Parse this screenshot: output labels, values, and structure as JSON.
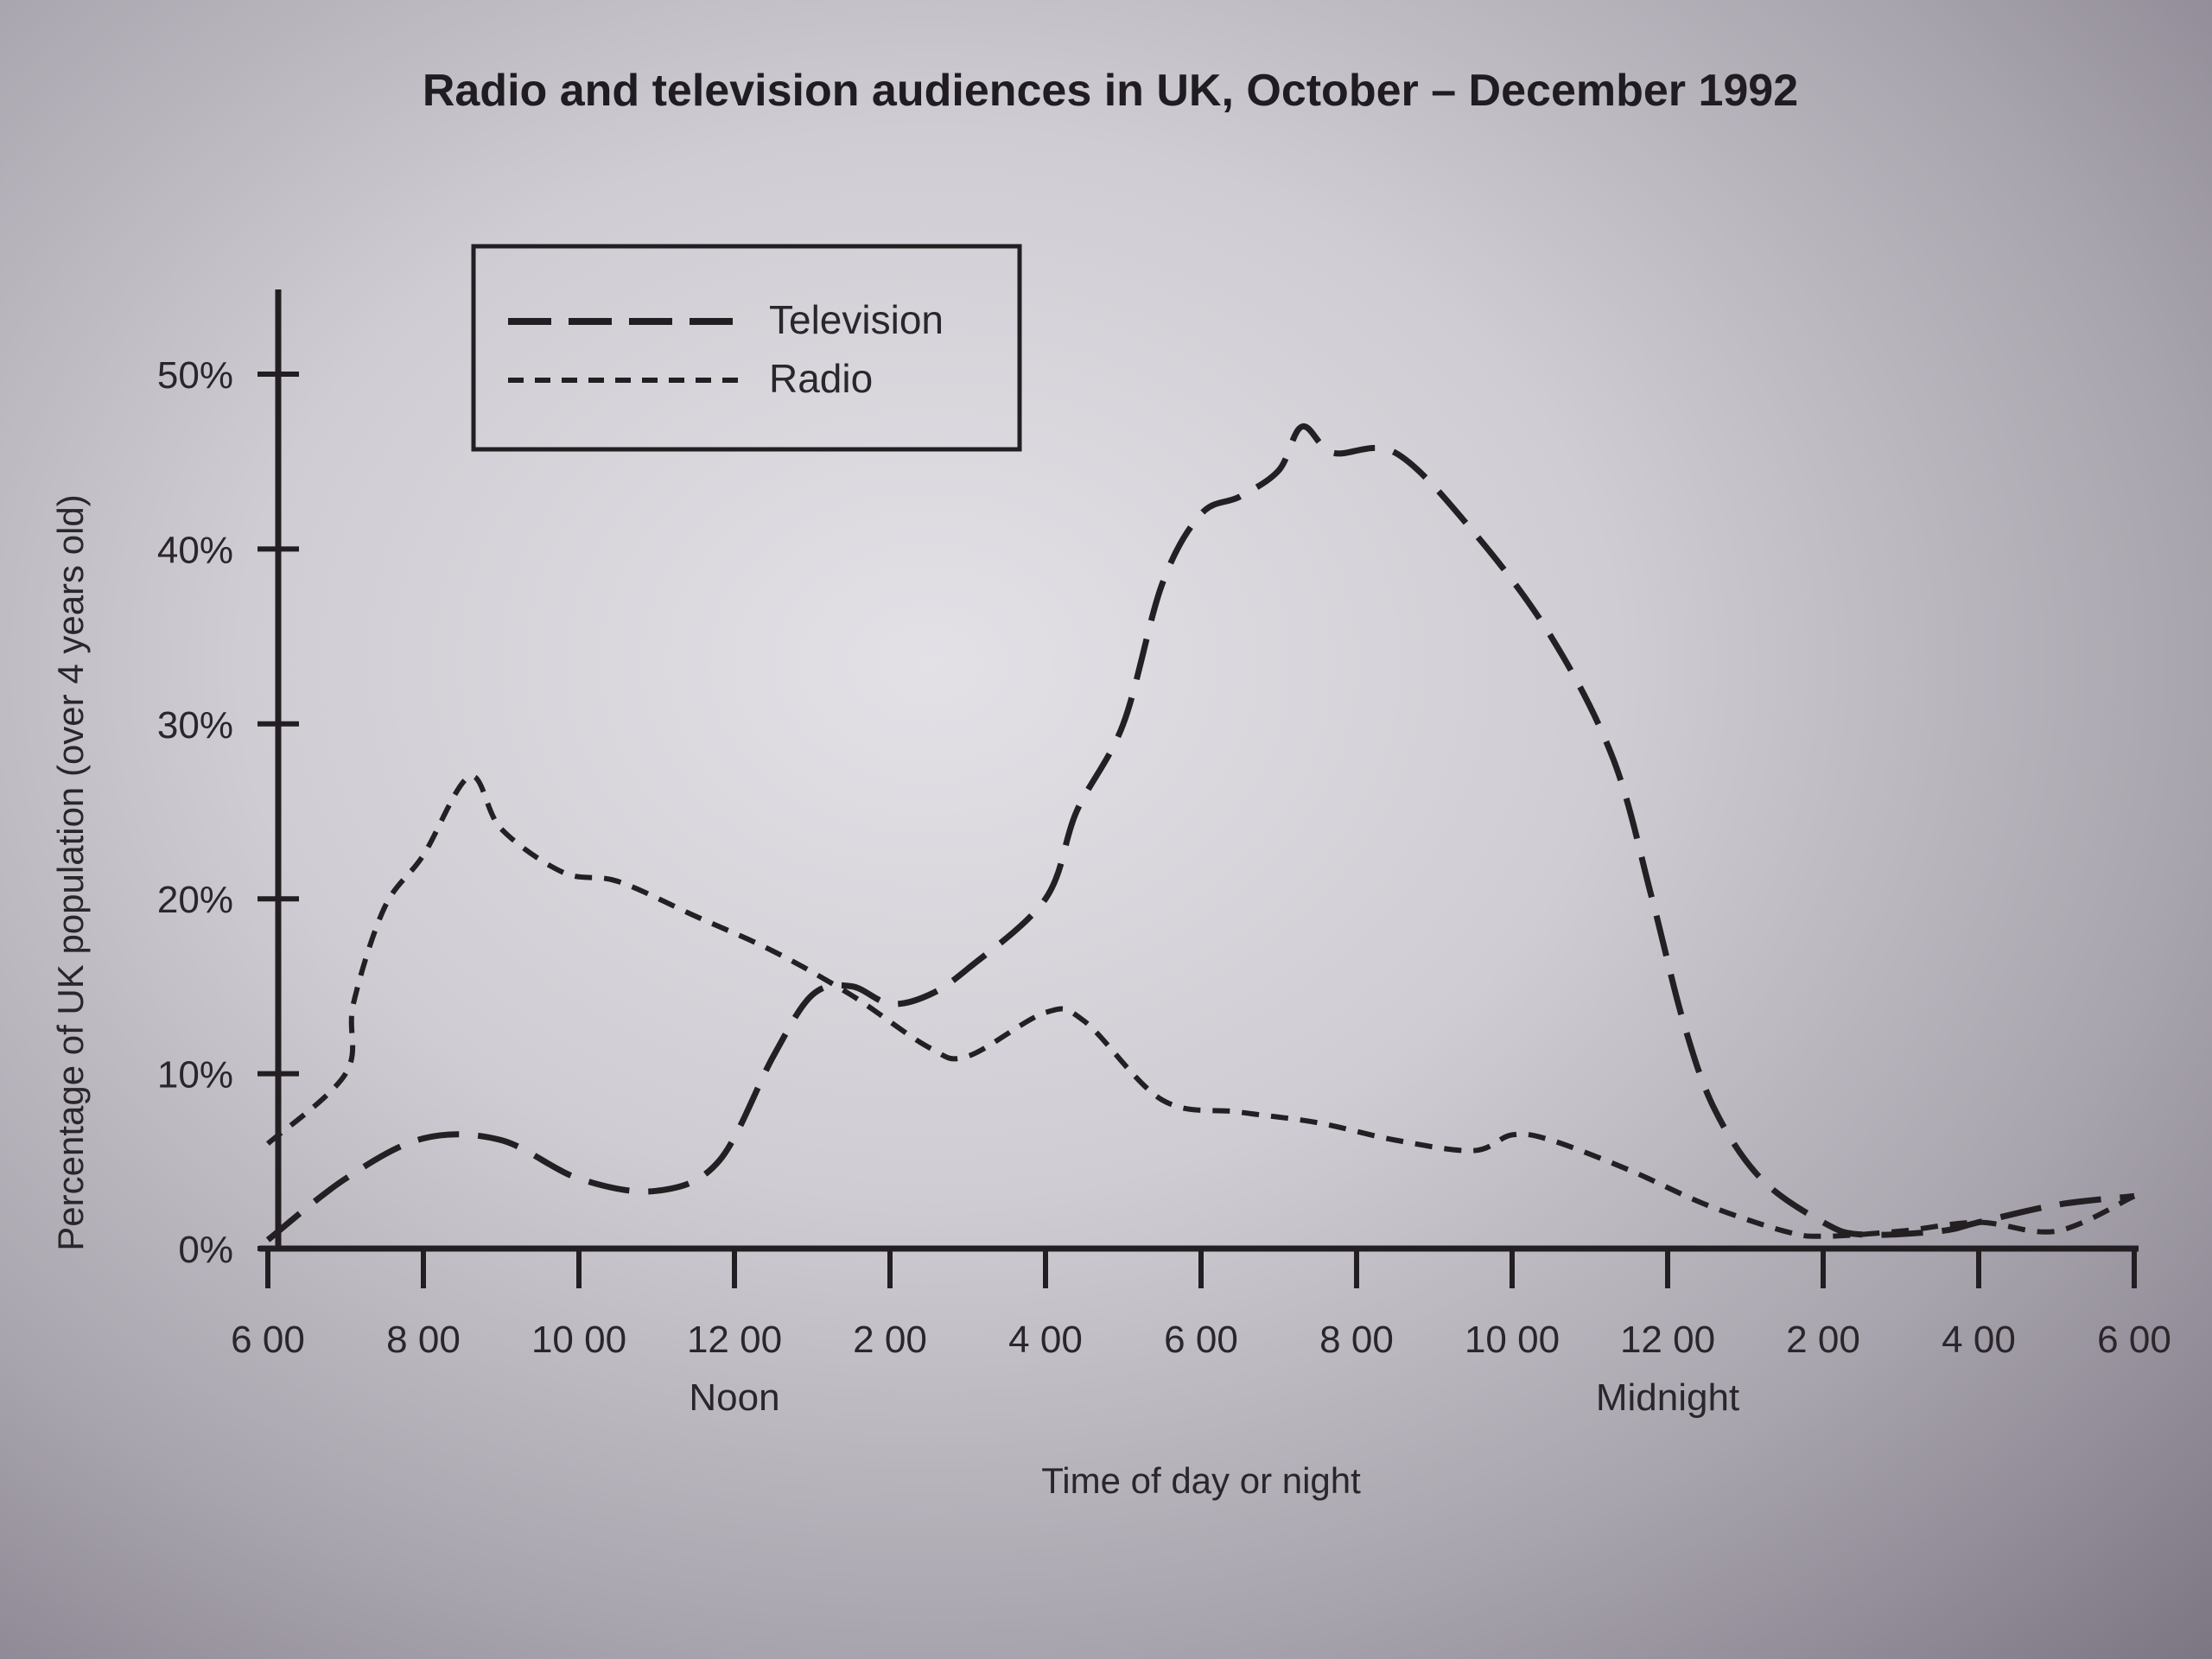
{
  "chart_data": {
    "type": "line",
    "title": "Radio and television audiences in UK, October – December 1992",
    "ylabel": "Percentage of UK population (over 4 years old)",
    "xlabel": "Time of day or night",
    "x_ticks": [
      "6 00",
      "8 00",
      "10 00",
      "12 00",
      "2 00",
      "4 00",
      "6 00",
      "8 00",
      "10 00",
      "12 00",
      "2 00",
      "4 00",
      "6 00"
    ],
    "x_tick_sublabels": [
      {
        "tick": "12 00",
        "index": 3,
        "text": "Noon"
      },
      {
        "tick": "12 00",
        "index": 9,
        "text": "Midnight"
      }
    ],
    "y_ticks": [
      "0%",
      "10%",
      "20%",
      "30%",
      "40%",
      "50%"
    ],
    "ylim": [
      0,
      55
    ],
    "x_unit": "hours after 6 00",
    "xlim": [
      0,
      24
    ],
    "legend": "top-left",
    "series": [
      {
        "name": "Television",
        "style": "long-dash",
        "color": "#231f22",
        "points": [
          [
            0,
            0.5
          ],
          [
            1,
            4
          ],
          [
            2,
            6.3
          ],
          [
            3,
            6.2
          ],
          [
            4,
            4
          ],
          [
            5,
            3.3
          ],
          [
            5.8,
            5
          ],
          [
            6.5,
            11
          ],
          [
            7,
            14.5
          ],
          [
            7.5,
            15
          ],
          [
            8,
            14
          ],
          [
            8.5,
            14.5
          ],
          [
            9,
            16
          ],
          [
            10,
            20
          ],
          [
            10.4,
            25
          ],
          [
            11,
            30
          ],
          [
            11.5,
            38
          ],
          [
            12,
            42
          ],
          [
            12.5,
            43
          ],
          [
            13,
            44.5
          ],
          [
            13.3,
            47
          ],
          [
            13.7,
            45.5
          ],
          [
            14.5,
            45.5
          ],
          [
            15.5,
            41
          ],
          [
            16.5,
            35
          ],
          [
            17.3,
            28
          ],
          [
            17.8,
            20
          ],
          [
            18.2,
            13
          ],
          [
            18.6,
            8
          ],
          [
            19.2,
            4
          ],
          [
            20,
            1.5
          ],
          [
            20.5,
            0.8
          ],
          [
            21.5,
            1
          ],
          [
            22,
            1.5
          ],
          [
            23,
            2.5
          ],
          [
            24,
            3
          ]
        ]
      },
      {
        "name": "Radio",
        "style": "short-dash",
        "color": "#231f22",
        "points": [
          [
            0,
            6
          ],
          [
            1,
            10
          ],
          [
            1.1,
            14
          ],
          [
            1.5,
            19.5
          ],
          [
            2,
            22.5
          ],
          [
            2.6,
            27
          ],
          [
            3,
            24
          ],
          [
            3.8,
            21.5
          ],
          [
            4.5,
            21
          ],
          [
            5.5,
            19
          ],
          [
            6.5,
            17
          ],
          [
            7.5,
            14.5
          ],
          [
            8.5,
            11.5
          ],
          [
            9,
            11
          ],
          [
            10,
            13.5
          ],
          [
            10.5,
            13
          ],
          [
            11.5,
            8.5
          ],
          [
            12.5,
            7.8
          ],
          [
            13.5,
            7.2
          ],
          [
            14.5,
            6.2
          ],
          [
            15.5,
            5.6
          ],
          [
            16,
            6.5
          ],
          [
            16.5,
            6.2
          ],
          [
            17.5,
            4.5
          ],
          [
            18.5,
            2.5
          ],
          [
            19.5,
            1
          ],
          [
            20,
            0.7
          ],
          [
            21,
            1
          ],
          [
            22,
            1.5
          ],
          [
            23,
            1
          ],
          [
            24,
            3
          ]
        ]
      }
    ]
  }
}
